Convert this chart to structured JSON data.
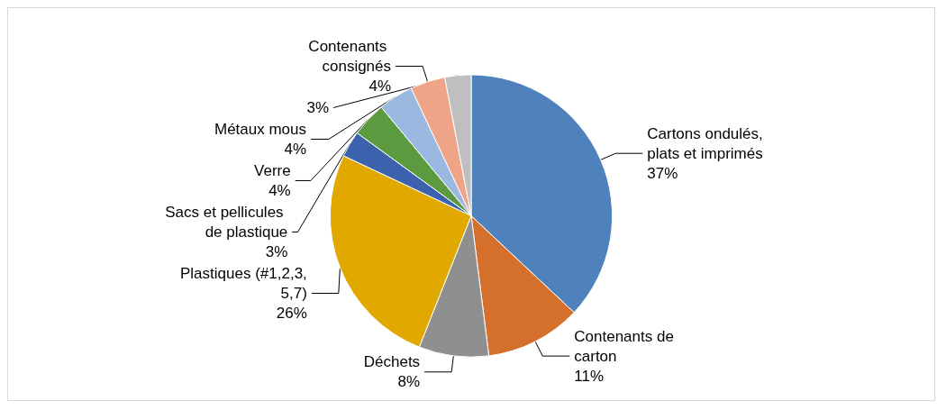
{
  "chart_data": {
    "type": "pie",
    "categories": [
      "Cartons ondulés, plats et imprimés",
      "Contenants de carton",
      "Déchets",
      "Plastiques (#1,2,3,5,7)",
      "Sacs et pellicules de plastique",
      "Verre",
      "Métaux mous",
      "Contenants consignés",
      null
    ],
    "values": [
      37,
      11,
      8,
      26,
      3,
      4,
      4,
      4,
      3
    ],
    "colors": [
      "#4f81bd",
      "#d4702c",
      "#8f8f8f",
      "#e1a900",
      "#3c62ad",
      "#5b9a3e",
      "#9bb8e0",
      "#f0a487",
      "#bfbfbf"
    ],
    "value_labels": [
      "37%",
      "11%",
      "8%",
      "26%",
      "3%",
      "4%",
      "4%",
      "4%",
      "3%"
    ],
    "legend": false
  }
}
